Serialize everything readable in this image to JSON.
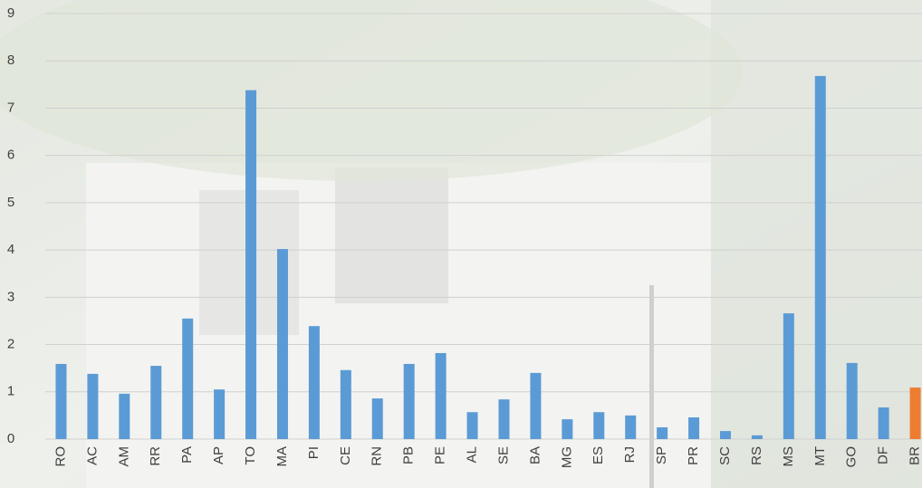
{
  "chart_data": {
    "type": "bar",
    "categories": [
      "RO",
      "AC",
      "AM",
      "RR",
      "PA",
      "AP",
      "TO",
      "MA",
      "PI",
      "CE",
      "RN",
      "PB",
      "PE",
      "AL",
      "SE",
      "BA",
      "MG",
      "ES",
      "RJ",
      "SP",
      "PR",
      "SC",
      "RS",
      "MS",
      "MT",
      "GO",
      "DF",
      "BR"
    ],
    "values": [
      1.59,
      1.38,
      0.96,
      1.55,
      2.55,
      1.05,
      7.38,
      4.02,
      2.39,
      1.46,
      0.86,
      1.59,
      1.82,
      0.57,
      0.84,
      1.4,
      0.42,
      0.57,
      0.5,
      0.25,
      0.46,
      0.17,
      0.08,
      2.66,
      7.68,
      1.61,
      0.67,
      1.09
    ],
    "colors": [
      "#5b9bd5",
      "#5b9bd5",
      "#5b9bd5",
      "#5b9bd5",
      "#5b9bd5",
      "#5b9bd5",
      "#5b9bd5",
      "#5b9bd5",
      "#5b9bd5",
      "#5b9bd5",
      "#5b9bd5",
      "#5b9bd5",
      "#5b9bd5",
      "#5b9bd5",
      "#5b9bd5",
      "#5b9bd5",
      "#5b9bd5",
      "#5b9bd5",
      "#5b9bd5",
      "#5b9bd5",
      "#5b9bd5",
      "#5b9bd5",
      "#5b9bd5",
      "#5b9bd5",
      "#5b9bd5",
      "#5b9bd5",
      "#5b9bd5",
      "#ed7d31"
    ],
    "ylim": [
      0,
      9
    ],
    "yticks": [
      0,
      1,
      2,
      3,
      4,
      5,
      6,
      7,
      8,
      9
    ],
    "grid": true
  }
}
